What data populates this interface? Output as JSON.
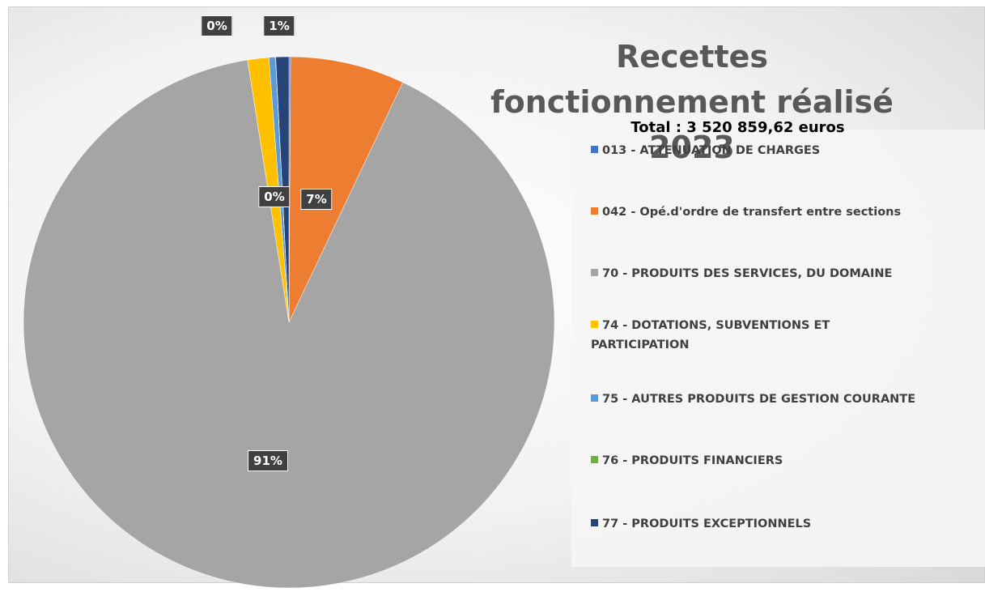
{
  "chart_data": {
    "type": "pie",
    "title": "Recettes fonctionnement réalisé 2023",
    "subtitle": "Total : 3 520 859,62 euros",
    "categories": [
      "013 - ATTENUATION DE CHARGES",
      "042 - Opé.d'ordre de transfert entre sections",
      "70 - PRODUITS DES SERVICES, DU DOMAINE",
      "74 - DOTATIONS, SUBVENTIONS ET PARTICIPATION",
      "75 - AUTRES PRODUITS DE GESTION COURANTE",
      "76 - PRODUITS FINANCIERS",
      "77 - PRODUITS EXCEPTIONNELS"
    ],
    "values": [
      0.1,
      7,
      91,
      1.3,
      0.4,
      0.01,
      0.8
    ],
    "value_labels": [
      "0%",
      "7%",
      "91%",
      null,
      "0%",
      null,
      "1%"
    ],
    "colors": [
      "#4472c4",
      "#ed7d31",
      "#a5a5a5",
      "#ffc000",
      "#5b9bd5",
      "#70ad47",
      "#264478"
    ],
    "legend": "right"
  }
}
